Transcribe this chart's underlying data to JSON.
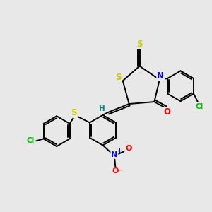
{
  "bg_color": "#e8e8e8",
  "atom_colors": {
    "S": "#cccc00",
    "N": "#0000ff",
    "O": "#ff0000",
    "Cl": "#00bb00",
    "C": "#000000",
    "H": "#008888"
  },
  "ring_lw": 1.4,
  "bond_lw": 1.4
}
